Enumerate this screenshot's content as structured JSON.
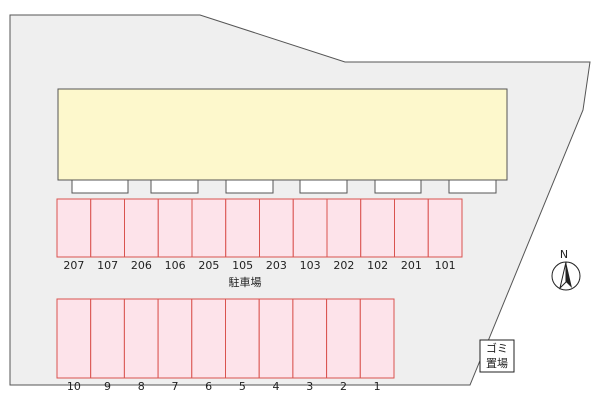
{
  "parking_upper": {
    "labels": [
      "207",
      "107",
      "206",
      "106",
      "205",
      "105",
      "203",
      "103",
      "202",
      "102",
      "201",
      "101"
    ]
  },
  "parking_lower": {
    "labels": [
      "10",
      "9",
      "8",
      "7",
      "6",
      "5",
      "4",
      "3",
      "2",
      "1"
    ]
  },
  "parking_label": "駐車場",
  "compass": {
    "label": "N"
  },
  "garbage": {
    "lines": [
      "ゴミ",
      "置場"
    ]
  }
}
